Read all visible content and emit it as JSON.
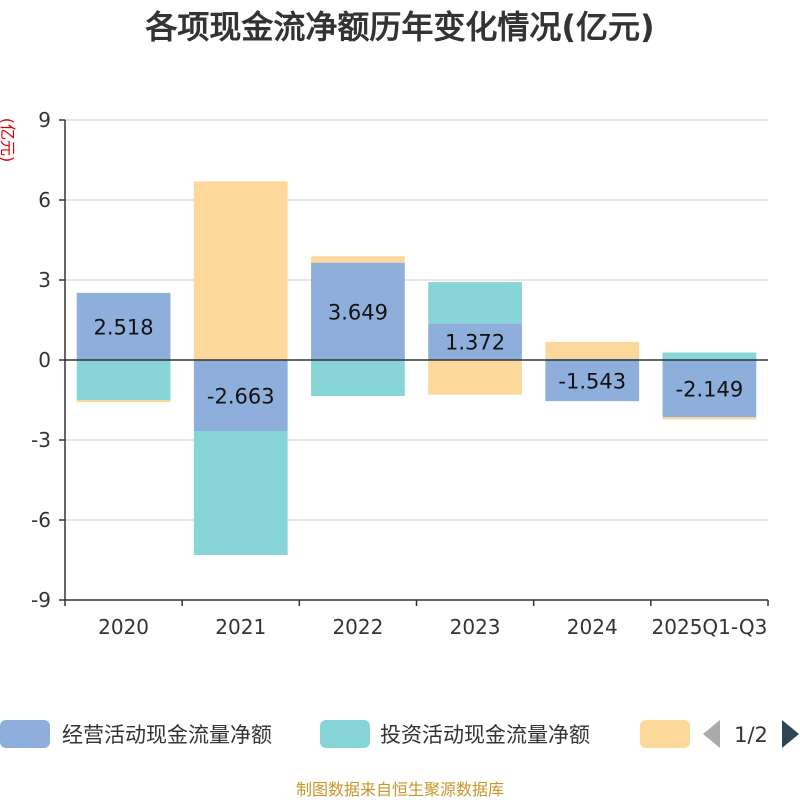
{
  "chart_data": {
    "type": "bar",
    "stacked": true,
    "title": "各项现金流净额历年变化情况(亿元)",
    "ylabel": "(亿元)",
    "categories": [
      "2020",
      "2021",
      "2022",
      "2023",
      "2024",
      "2025Q1-Q3"
    ],
    "ylim": [
      -9,
      9
    ],
    "yticks": [
      9,
      6,
      3,
      0,
      -3,
      -6,
      -9
    ],
    "grid": true,
    "series": [
      {
        "name": "经营活动现金流量净额",
        "color": "#8eaedb",
        "values": [
          2.518,
          -2.663,
          3.649,
          1.372,
          -1.543,
          -2.149
        ],
        "labels": [
          "2.518",
          "-2.663",
          "3.649",
          "1.372",
          "-1.543",
          "-2.149"
        ]
      },
      {
        "name": "投资活动现金流量净额",
        "color": "#88d5d8",
        "values": [
          -1.5,
          -4.65,
          -1.35,
          1.55,
          0.05,
          0.28
        ],
        "labels": []
      },
      {
        "name": "",
        "color": "#fdd89b",
        "values": [
          -0.08,
          6.7,
          0.24,
          -1.3,
          0.63,
          -0.08
        ],
        "labels": []
      }
    ],
    "legend": {
      "position": "bottom",
      "page": "1/2"
    }
  },
  "source": "制图数据来自恒生聚源数据库"
}
